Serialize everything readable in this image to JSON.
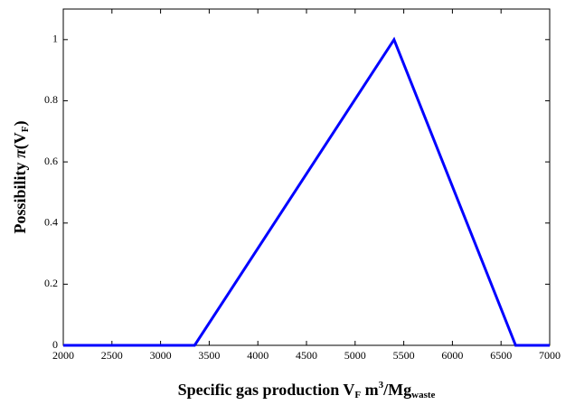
{
  "chart_data": {
    "type": "line",
    "x_label_parts": [
      "Specific gas production V",
      "F",
      " m",
      "3",
      "/Mg",
      "waste"
    ],
    "y_label_parts": [
      "Possibility ",
      "π",
      "(V",
      "F",
      ")"
    ],
    "x": [
      2000,
      3350,
      5400,
      6650,
      7000
    ],
    "y": [
      0,
      0,
      1,
      0,
      0
    ],
    "color": "#0000ff",
    "xlim": [
      2000,
      7000
    ],
    "xticks": [
      2000,
      2500,
      3000,
      3500,
      4000,
      4500,
      5000,
      5500,
      6000,
      6500,
      7000
    ],
    "ylim": [
      0,
      1.1
    ],
    "yticks": [
      0,
      0.2,
      0.4,
      0.6,
      0.8,
      1
    ],
    "grid": false
  }
}
